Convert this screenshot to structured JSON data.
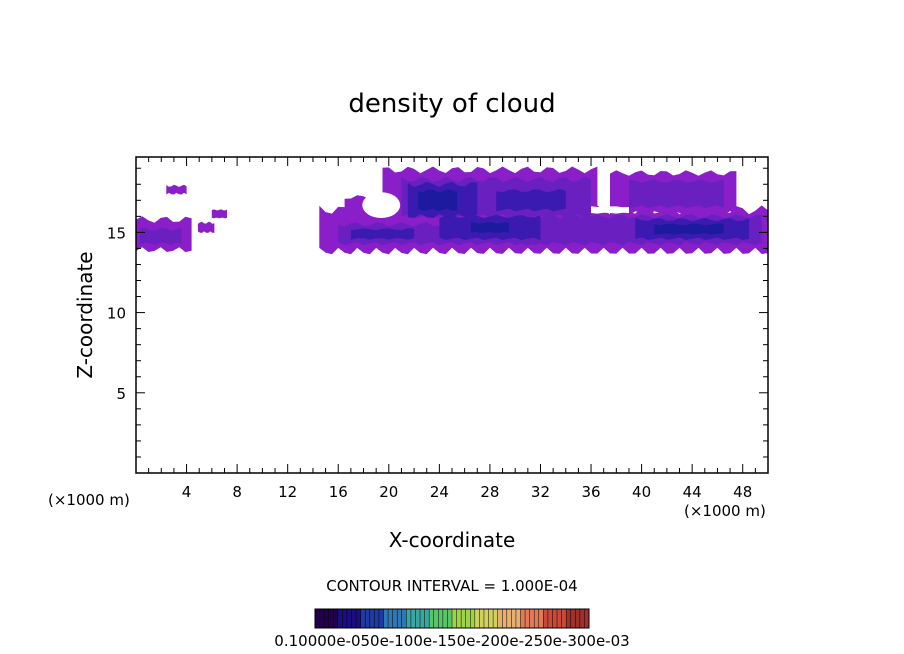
{
  "chart_data": {
    "type": "heatmap",
    "title": "density of cloud",
    "xlabel": "X-coordinate",
    "ylabel": "Z-coordinate",
    "x_unit_left": "(×1000 m)",
    "x_unit_right": "(×1000 m)",
    "xlim": [
      0,
      50
    ],
    "ylim": [
      0,
      19.7
    ],
    "x_ticks": [
      4,
      8,
      12,
      16,
      20,
      24,
      28,
      32,
      36,
      40,
      44,
      48
    ],
    "y_ticks": [
      5,
      10,
      15
    ],
    "contour_interval_label": "CONTOUR INTERVAL = 1.000E-04",
    "colorbar_label_text": "0.10000e-050e-100e-150e-200e-250e-300e-03",
    "colorbar_colors": [
      "#22004a",
      "#1a0f80",
      "#1f3aa0",
      "#2f78b4",
      "#3aa6a0",
      "#5ac46a",
      "#9ed24a",
      "#d0d060",
      "#e6b070",
      "#e07a58",
      "#c84a3a",
      "#a0302c"
    ],
    "field_colors": {
      "edge": "#8a1ec8",
      "mid": "#6a20c0",
      "core": "#3a1ab0",
      "peak": "#1e1aa0"
    },
    "cloud_regions": [
      {
        "name": "left-anvil",
        "x": [
          0,
          4.4
        ],
        "z": [
          13.9,
          15.8
        ],
        "level": "mid"
      },
      {
        "name": "left-puff",
        "x": [
          2.4,
          4.0
        ],
        "z": [
          17.4,
          17.8
        ],
        "level": "edge"
      },
      {
        "name": "left-mid-puff",
        "x": [
          4.8,
          7.2
        ],
        "z": [
          15.0,
          16.3
        ],
        "level": "edge"
      },
      {
        "name": "main-lower-layer",
        "x": [
          14.5,
          50
        ],
        "z": [
          13.8,
          16.2
        ],
        "level": "core"
      },
      {
        "name": "main-upper-layer",
        "x": [
          18.5,
          48
        ],
        "z": [
          15.8,
          18.8
        ],
        "level": "core"
      },
      {
        "name": "peak-core-24",
        "x": [
          21,
          26
        ],
        "z": [
          15.8,
          18.2
        ],
        "level": "peak"
      },
      {
        "name": "peak-core-44",
        "x": [
          40,
          48
        ],
        "z": [
          14.8,
          16.0
        ],
        "level": "peak"
      }
    ]
  }
}
